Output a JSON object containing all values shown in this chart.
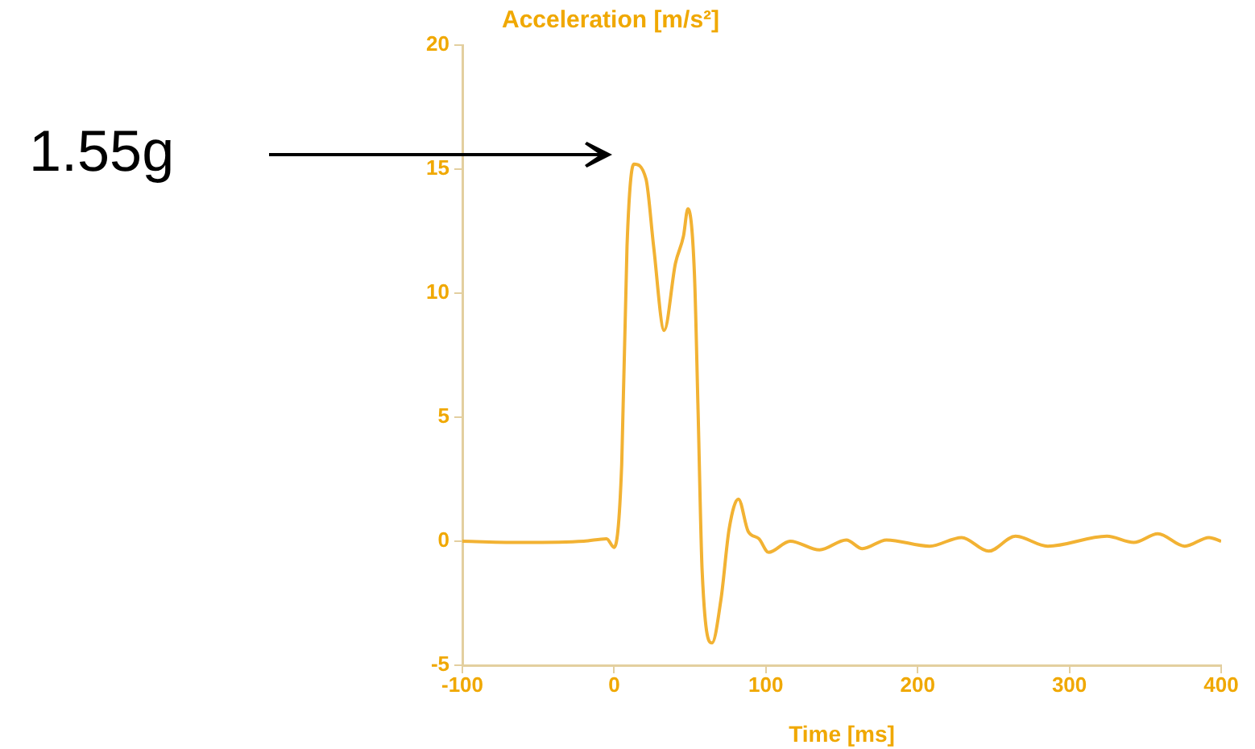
{
  "chart_data": {
    "type": "line",
    "title": "Acceleration [m/s²]",
    "xlabel": "Time [ms]",
    "x": [
      -100,
      -60,
      -20,
      -5,
      0,
      5,
      8.5,
      13,
      21,
      26,
      33,
      40.4,
      45.7,
      48.6,
      52.9,
      55.3,
      58,
      64.5,
      70.5,
      75.8,
      81.9,
      88.3,
      95.4,
      101.8,
      116,
      135.4,
      153,
      163.6,
      179.5,
      207.8,
      229,
      246.8,
      264.5,
      285.7,
      324.7,
      342.4,
      358.3,
      376,
      392,
      400
    ],
    "values": [
      0,
      -0.05,
      0,
      0.1,
      -0.25,
      3.1,
      11.9,
      15.2,
      14.6,
      11.9,
      8.5,
      11.2,
      12.3,
      13.4,
      10.8,
      5.3,
      -1.2,
      -4.1,
      -2.3,
      0.5,
      1.7,
      0.4,
      0.1,
      -0.45,
      0,
      -0.35,
      0.05,
      -0.3,
      0.05,
      -0.2,
      0.15,
      -0.4,
      0.2,
      -0.2,
      0.2,
      -0.05,
      0.3,
      -0.2,
      0.15,
      0
    ],
    "color": "#f2b233",
    "xlim": [
      -100,
      400
    ],
    "xticks": [
      -100,
      0,
      100,
      200,
      300,
      400
    ],
    "ylim": [
      -5,
      20
    ],
    "yticks": [
      -5,
      0,
      5,
      10,
      15,
      20
    ],
    "grid": false,
    "annotations": [
      "1.55g"
    ]
  }
}
